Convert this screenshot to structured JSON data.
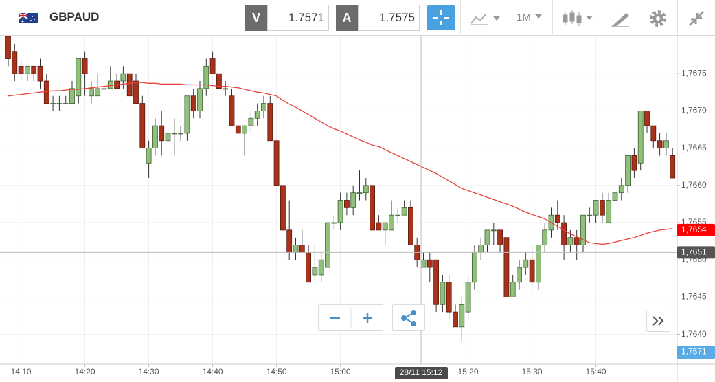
{
  "header": {
    "symbol": "GBPAUD",
    "bid": {
      "label": "V",
      "value": 1.7571
    },
    "ask": {
      "label": "A",
      "value": 1.7575
    },
    "timeframe": "1M"
  },
  "chart_data": {
    "type": "candlestick",
    "categories": [
      null,
      null,
      "14:10",
      null,
      null,
      null,
      null,
      null,
      null,
      null,
      null,
      null,
      "14:20",
      null,
      null,
      null,
      null,
      null,
      null,
      null,
      null,
      null,
      "14:30",
      null,
      null,
      null,
      null,
      null,
      null,
      null,
      null,
      null,
      "14:40",
      null,
      null,
      null,
      null,
      null,
      null,
      null,
      null,
      null,
      "14:50",
      null,
      null,
      null,
      null,
      null,
      null,
      null,
      null,
      null,
      "15:00",
      null,
      null,
      null,
      null,
      null,
      null,
      null,
      null,
      null,
      null,
      null,
      null,
      null,
      null,
      null,
      null,
      null,
      null,
      null,
      "15:20",
      null,
      null,
      null,
      null,
      null,
      null,
      null,
      null,
      null,
      "15:30",
      null,
      null,
      null,
      null,
      null,
      null,
      null,
      null,
      null,
      "15:40",
      null,
      null,
      null,
      null,
      null,
      null,
      null,
      null,
      null,
      null,
      null,
      null
    ],
    "open": [
      1.768,
      1.7678,
      1.7676,
      1.7675,
      1.7676,
      1.7676,
      1.7674,
      1.7671,
      1.7671,
      1.7671,
      1.7671,
      1.7672,
      1.7677,
      1.7672,
      1.7672,
      1.7673,
      1.7673,
      1.7674,
      1.7674,
      1.7675,
      1.7674,
      1.7671,
      1.7663,
      1.7665,
      1.7668,
      1.7666,
      1.7667,
      1.7667,
      1.7667,
      1.7672,
      1.767,
      1.7673,
      1.7677,
      1.7675,
      1.7673,
      1.7672,
      1.7668,
      1.7667,
      1.7668,
      1.7669,
      1.767,
      1.7671,
      1.7666,
      1.766,
      1.7654,
      1.7651,
      1.7652,
      1.7651,
      1.7648,
      1.7648,
      1.7649,
      1.7655,
      1.7655,
      1.7658,
      1.7657,
      1.7659,
      1.7659,
      1.766,
      1.7655,
      1.7654,
      1.7654,
      1.7656,
      1.7656,
      1.7657,
      1.7652,
      1.7649,
      1.765,
      1.765,
      1.7644,
      1.7647,
      1.7643,
      1.7641,
      1.7643,
      1.7647,
      1.7651,
      1.7652,
      1.7654,
      1.7654,
      1.7653,
      1.7645,
      1.7647,
      1.7649,
      1.765,
      1.7647,
      1.7652,
      1.7654,
      1.7656,
      1.7655,
      1.7652,
      1.7653,
      1.7652,
      1.7656,
      1.7656,
      1.7658,
      1.7655,
      1.7658,
      1.7659,
      1.766,
      1.7664,
      1.7663,
      1.767,
      1.7668,
      1.7666,
      1.7665,
      1.7664
    ],
    "high": [
      1.768,
      1.7679,
      1.7677,
      1.7676,
      1.7676,
      1.7677,
      1.7675,
      1.7672,
      1.7672,
      1.7672,
      1.7674,
      1.7677,
      1.7678,
      1.7674,
      1.7675,
      1.7674,
      1.7676,
      1.7675,
      1.7676,
      1.7675,
      1.7675,
      1.7672,
      1.7666,
      1.7669,
      1.767,
      1.7667,
      1.7669,
      1.7668,
      1.7672,
      1.7673,
      1.7674,
      1.7677,
      1.7678,
      1.7675,
      1.7674,
      1.7673,
      1.7668,
      1.7668,
      1.767,
      1.7671,
      1.7672,
      1.7672,
      1.7666,
      1.766,
      1.7658,
      1.7653,
      1.7654,
      1.7652,
      1.7652,
      1.7651,
      1.7655,
      1.7656,
      1.7659,
      1.7659,
      1.766,
      1.7662,
      1.7661,
      1.766,
      1.7656,
      1.7655,
      1.7658,
      1.7657,
      1.7658,
      1.7658,
      1.7653,
      1.7651,
      1.7651,
      1.765,
      1.7648,
      1.7648,
      1.7644,
      1.7645,
      1.7648,
      1.7652,
      1.7653,
      1.7654,
      1.7655,
      1.7654,
      1.7653,
      1.7648,
      1.765,
      1.7651,
      1.7652,
      1.7652,
      1.7655,
      1.7657,
      1.7658,
      1.7656,
      1.7654,
      1.7654,
      1.7656,
      1.7657,
      1.7658,
      1.7659,
      1.7659,
      1.766,
      1.7661,
      1.7664,
      1.7665,
      1.767,
      1.767,
      1.7668,
      1.7667,
      1.7667,
      1.7665
    ],
    "low": [
      1.7676,
      1.7674,
      1.7674,
      1.7674,
      1.7674,
      1.7673,
      1.7671,
      1.767,
      1.767,
      1.7671,
      1.7671,
      1.7671,
      1.7672,
      1.7671,
      1.7672,
      1.7672,
      1.7673,
      1.7673,
      1.7673,
      1.7672,
      1.7671,
      1.7665,
      1.7661,
      1.7664,
      1.7664,
      1.7664,
      1.7664,
      1.7666,
      1.7666,
      1.7669,
      1.7669,
      1.7672,
      1.7675,
      1.7673,
      1.7672,
      1.7668,
      1.7667,
      1.7664,
      1.7667,
      1.7668,
      1.7669,
      1.7666,
      1.766,
      1.7654,
      1.765,
      1.765,
      1.7651,
      1.7647,
      1.7647,
      1.7647,
      1.7649,
      1.7654,
      1.7654,
      1.7656,
      1.7656,
      1.7658,
      1.7658,
      1.7654,
      1.7654,
      1.7652,
      1.7654,
      1.7655,
      1.7656,
      1.7652,
      1.7649,
      1.7649,
      1.7647,
      1.7643,
      1.7643,
      1.7642,
      1.7641,
      1.7639,
      1.7642,
      1.7646,
      1.765,
      1.7651,
      1.7652,
      1.7651,
      1.7645,
      1.7645,
      1.7646,
      1.7648,
      1.7646,
      1.7646,
      1.7651,
      1.7653,
      1.7654,
      1.765,
      1.7651,
      1.765,
      1.7651,
      1.7655,
      1.7655,
      1.7655,
      1.7655,
      1.7657,
      1.7658,
      1.7659,
      1.7661,
      1.7662,
      1.7667,
      1.7665,
      1.7664,
      1.7664,
      1.7661
    ],
    "close": [
      1.7677,
      1.7675,
      1.7675,
      1.7676,
      1.7675,
      1.7674,
      1.7671,
      1.7671,
      1.7671,
      1.7671,
      1.7673,
      1.7677,
      1.7675,
      1.7673,
      1.7673,
      1.7673,
      1.7674,
      1.7673,
      1.7675,
      1.7672,
      1.7671,
      1.7665,
      1.7665,
      1.7668,
      1.7666,
      1.7667,
      1.7667,
      1.7667,
      1.7672,
      1.767,
      1.7673,
      1.7676,
      1.7675,
      1.7673,
      1.7673,
      1.7668,
      1.7667,
      1.7668,
      1.7669,
      1.767,
      1.7671,
      1.7666,
      1.766,
      1.7654,
      1.7651,
      1.7652,
      1.7651,
      1.7647,
      1.7649,
      1.765,
      1.7655,
      1.7655,
      1.7658,
      1.7657,
      1.7659,
      1.7659,
      1.766,
      1.7654,
      1.7654,
      1.7655,
      1.7656,
      1.7656,
      1.7657,
      1.7652,
      1.765,
      1.765,
      1.7649,
      1.7644,
      1.7647,
      1.7643,
      1.7641,
      1.7644,
      1.7647,
      1.7651,
      1.7652,
      1.7654,
      1.7654,
      1.7652,
      1.7645,
      1.7647,
      1.7649,
      1.765,
      1.7647,
      1.7652,
      1.7654,
      1.7656,
      1.7655,
      1.7652,
      1.7653,
      1.7652,
      1.7656,
      1.7656,
      1.7658,
      1.7656,
      1.7658,
      1.7659,
      1.766,
      1.7664,
      1.7662,
      1.767,
      1.7668,
      1.7666,
      1.7665,
      1.7666,
      1.7661
    ],
    "up_color": "#8fc07c",
    "down_color": "#a8321c",
    "ma": {
      "color": "#e8413a",
      "values": [
        1.7672,
        1.76721,
        1.76722,
        1.76723,
        1.76724,
        1.76725,
        1.76726,
        1.76727,
        1.76727,
        1.76728,
        1.76729,
        1.76729,
        1.7673,
        1.76731,
        1.76732,
        1.76733,
        1.76734,
        1.76735,
        1.76736,
        1.76737,
        1.76738,
        1.76738,
        1.76737,
        1.76737,
        1.76736,
        1.76736,
        1.76736,
        1.76736,
        1.76735,
        1.76735,
        1.76735,
        1.76735,
        1.76734,
        1.76733,
        1.76733,
        1.76732,
        1.76731,
        1.76729,
        1.76727,
        1.76725,
        1.76724,
        1.76722,
        1.7672,
        1.76714,
        1.76709,
        1.76705,
        1.767,
        1.76695,
        1.7669,
        1.76685,
        1.7668,
        1.76676,
        1.76673,
        1.76669,
        1.76665,
        1.76661,
        1.76658,
        1.76654,
        1.76652,
        1.76648,
        1.76644,
        1.7664,
        1.76636,
        1.76632,
        1.76628,
        1.76624,
        1.7662,
        1.76616,
        1.76611,
        1.76606,
        1.76601,
        1.76596,
        1.76593,
        1.7659,
        1.76587,
        1.76584,
        1.76581,
        1.76578,
        1.76575,
        1.76572,
        1.76568,
        1.76564,
        1.76561,
        1.76558,
        1.76555,
        1.7655,
        1.76545,
        1.7654,
        1.76535,
        1.76531,
        1.76527,
        1.76523,
        1.76522,
        1.76521,
        1.76522,
        1.76524,
        1.76526,
        1.76528,
        1.7653,
        1.76533,
        1.76536,
        1.76538,
        1.7654,
        1.76541,
        1.76542
      ]
    },
    "ylim": [
      1.7636,
      1.768
    ],
    "yticks": [
      {
        "value": 1.764,
        "label": "1,7640"
      },
      {
        "value": 1.7645,
        "label": "1,7645"
      },
      {
        "value": 1.765,
        "label": "1,7650"
      },
      {
        "value": 1.7655,
        "label": "1,7655"
      },
      {
        "value": 1.766,
        "label": "1,7660"
      },
      {
        "value": 1.7665,
        "label": "1,7665"
      },
      {
        "value": 1.767,
        "label": "1,7670"
      },
      {
        "value": 1.7675,
        "label": "1,7675"
      }
    ],
    "grid": true,
    "price_labels": [
      {
        "value": 1.7654,
        "label": "1,7654",
        "color": "#ff0000"
      }
    ],
    "crosshair": {
      "time_label": "28/11 15:12",
      "value": 1.7651,
      "label": "1,7651"
    },
    "bid_label": "1,7571"
  }
}
